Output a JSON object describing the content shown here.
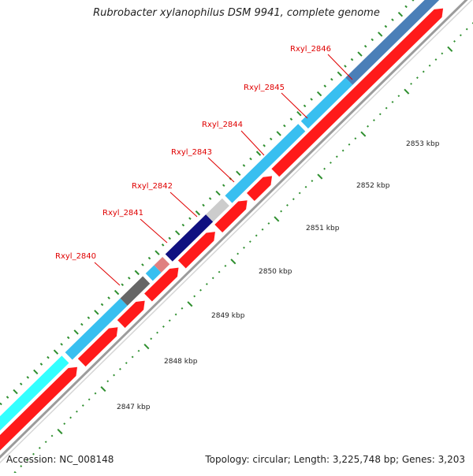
{
  "title": "Rubrobacter xylanophilus DSM 9941, complete genome",
  "footer": {
    "accession": "Accession: NC_008148",
    "topology": "Topology: circular; Length: 3,225,748 bp; Genes: 3,203"
  },
  "colors": {
    "cds_forward": "#ff1a1a",
    "backbone": "#9c9c9c",
    "tick": "#2f8f2f",
    "label": "#e00000"
  },
  "genes": [
    {
      "name": "",
      "color": "#33ffff"
    },
    {
      "name": "Rxyl_2840",
      "color": "#38bff0"
    },
    {
      "name": "Rxyl_2841",
      "color": "#666666"
    },
    {
      "name": "Rxyl_2842",
      "color": "#38bff0"
    },
    {
      "name": "Rxyl_2842",
      "color": "#e08080"
    },
    {
      "name": "Rxyl_2843",
      "color": "#101080"
    },
    {
      "name": "Rxyl_2844",
      "color": "#cccccc"
    },
    {
      "name": "Rxyl_2845",
      "color": "#38bff0"
    },
    {
      "name": "Rxyl_2846",
      "color": "#38bff0"
    },
    {
      "name": "",
      "color": "#4a7fb8"
    }
  ],
  "gene_labels": [
    "Rxyl_2840",
    "Rxyl_2841",
    "Rxyl_2842",
    "Rxyl_2843",
    "Rxyl_2844",
    "Rxyl_2845",
    "Rxyl_2846"
  ],
  "kbp_labels": [
    "2847 kbp",
    "2848 kbp",
    "2849 kbp",
    "2850 kbp",
    "2851 kbp",
    "2852 kbp",
    "2853 kbp"
  ]
}
